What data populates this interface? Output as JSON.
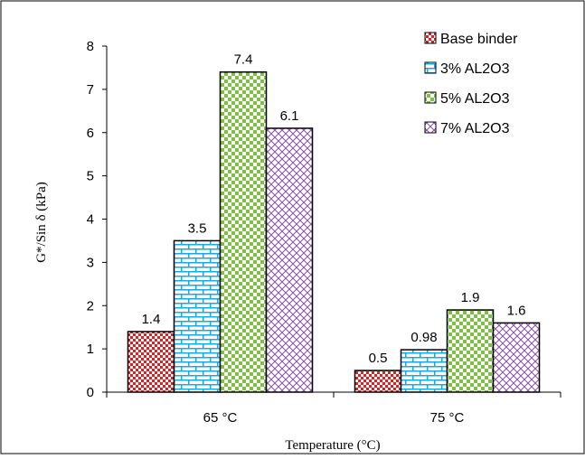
{
  "chart_data": {
    "type": "bar",
    "categories": [
      "65 °C",
      "75 °C"
    ],
    "series": [
      {
        "name": "Base binder",
        "values": [
          1.4,
          0.5
        ],
        "labels": [
          "1.4",
          "0.5"
        ],
        "color": "#e02020",
        "pattern": "dots"
      },
      {
        "name": "3% AL2O3",
        "values": [
          3.5,
          0.98
        ],
        "labels": [
          "3.5",
          "0.98"
        ],
        "color": "#17a9e6",
        "pattern": "bricks"
      },
      {
        "name": "5% AL2O3",
        "values": [
          7.4,
          1.9
        ],
        "labels": [
          "7.4",
          "1.9"
        ],
        "color": "#7dc142",
        "pattern": "checker"
      },
      {
        "name": "7% AL2O3",
        "values": [
          6.1,
          1.6
        ],
        "labels": [
          "6.1",
          "1.6"
        ],
        "color": "#8a4fa3",
        "pattern": "crosshatch"
      }
    ],
    "xlabel": "Temperature (°C)",
    "ylabel": "G*/Sin δ (kPa)",
    "ylim": [
      0,
      8
    ],
    "yticks": [
      "0",
      "1",
      "2",
      "3",
      "4",
      "5",
      "6",
      "7",
      "8"
    ],
    "grid": false,
    "legend": "top-right"
  }
}
